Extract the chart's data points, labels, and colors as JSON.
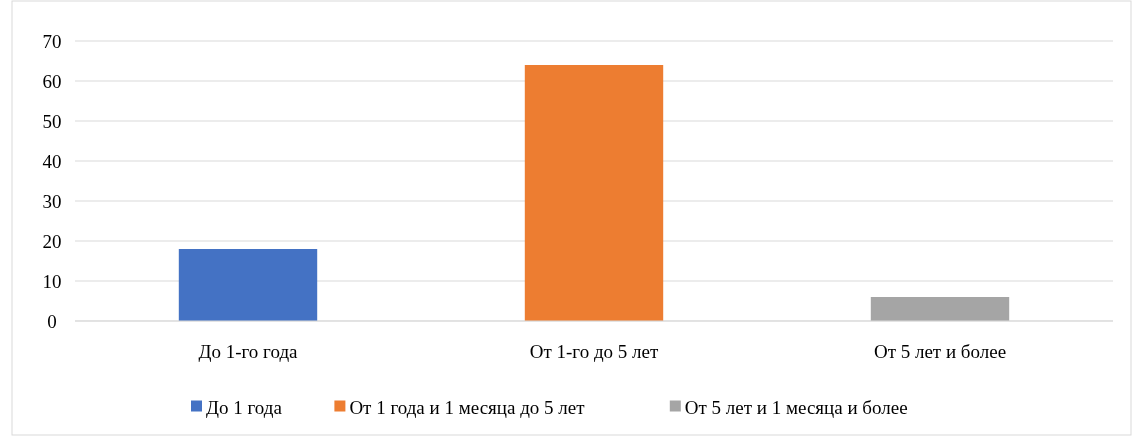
{
  "chart_data": {
    "type": "bar",
    "categories": [
      "До 1-го года",
      "От 1-го до 5 лет",
      "От 5 лет и более"
    ],
    "series": [
      {
        "name": "До 1 года",
        "color": "#4472c4",
        "values": [
          18,
          null,
          null
        ]
      },
      {
        "name": "От 1 года и 1 месяца до 5 лет",
        "color": "#ed7d31",
        "values": [
          null,
          64,
          null
        ]
      },
      {
        "name": "От 5 лет и 1 месяца и более",
        "color": "#a5a5a5",
        "values": [
          null,
          null,
          6
        ]
      }
    ],
    "ylim": [
      0,
      70
    ],
    "yticks": [
      0,
      10,
      20,
      30,
      40,
      50,
      60,
      70
    ],
    "grid": "y",
    "legend": "bottom"
  }
}
